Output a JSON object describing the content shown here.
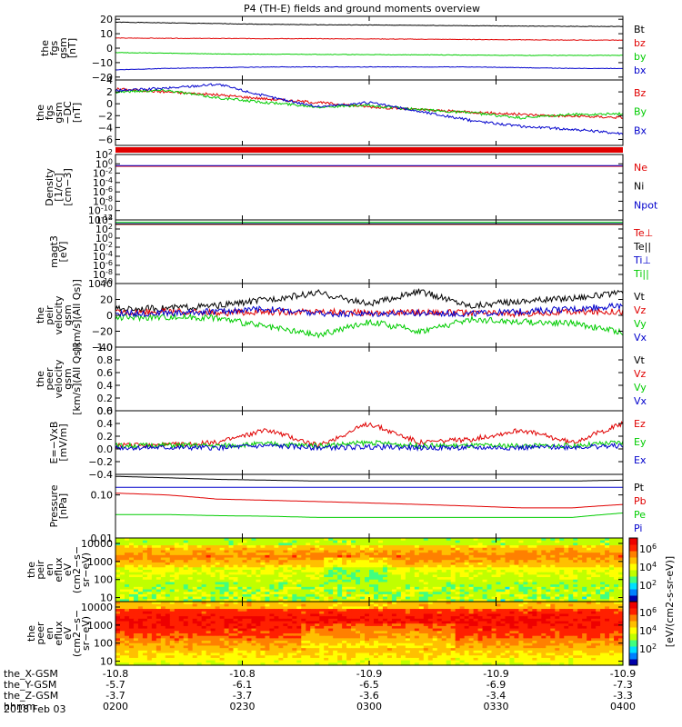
{
  "title": "P4 (TH-E) fields and ground moments overview",
  "footer_date": "2018 Feb 03",
  "colorbar_label": "[eV/(cm2-s-sr-eV)]",
  "colorbar_ticks": [
    "10^6",
    "10^4",
    "10^2"
  ],
  "ephemeris": {
    "labels": [
      "the_X-GSM",
      "the_Y-GSM",
      "the_Z-GSM",
      "hhmm"
    ],
    "rows": [
      [
        "-10.8",
        "-10.8",
        "-10.9",
        "-10.9",
        "-10.9"
      ],
      [
        "-5.7",
        "-6.1",
        "-6.5",
        "-6.9",
        "-7.3"
      ],
      [
        "-3.7",
        "-3.7",
        "-3.6",
        "-3.4",
        "-3.3"
      ],
      [
        "0200",
        "0230",
        "0300",
        "0330",
        "0400"
      ]
    ]
  },
  "chart_data": [
    {
      "id": "fgs",
      "type": "line",
      "ylabel": "the\nfgs\ngsm\n[nT]",
      "ylim": [
        -22,
        22
      ],
      "ticks": [
        {
          "v": 20,
          "t": "20"
        },
        {
          "v": 10,
          "t": "10"
        },
        {
          "v": 0,
          "t": "0"
        },
        {
          "v": -10,
          "t": "−10"
        },
        {
          "v": -20,
          "t": "−20"
        }
      ],
      "series": [
        {
          "name": "Bt",
          "color": "#000000",
          "values": [
            18,
            17.5,
            17,
            16.5,
            16.2,
            16,
            15.8,
            15.5,
            15.3,
            15.1,
            15
          ]
        },
        {
          "name": "bz",
          "color": "#e00000",
          "values": [
            7,
            6.8,
            6.7,
            6.6,
            6.5,
            6.4,
            6.2,
            6,
            5.8,
            5.6,
            5.5
          ]
        },
        {
          "name": "by",
          "color": "#00cc00",
          "values": [
            -3,
            -3.5,
            -4,
            -4.2,
            -4.3,
            -4.5,
            -4.6,
            -4.8,
            -5,
            -5,
            -5
          ]
        },
        {
          "name": "bx",
          "color": "#0000cc",
          "values": [
            -15,
            -14,
            -13.5,
            -13,
            -13,
            -13,
            -13,
            -13,
            -13.5,
            -14,
            -14
          ]
        }
      ]
    },
    {
      "id": "fgs_dtrend",
      "type": "line",
      "ylabel": "the\nfgs\ngsm\n−DC\n[nT]",
      "ylim": [
        -7,
        4
      ],
      "ticks": [
        {
          "v": 4,
          "t": "4"
        },
        {
          "v": 2,
          "t": "2"
        },
        {
          "v": 0,
          "t": "0"
        },
        {
          "v": -2,
          "t": "−2"
        },
        {
          "v": -4,
          "t": "−4"
        },
        {
          "v": -6,
          "t": "−6"
        }
      ],
      "series": [
        {
          "name": "Bz",
          "color": "#e00000",
          "values": [
            2.5,
            2,
            1.5,
            0.8,
            0.2,
            -0.5,
            -1,
            -1.4,
            -1.8,
            -2.1,
            -2.3
          ]
        },
        {
          "name": "By",
          "color": "#00cc00",
          "values": [
            2,
            2.3,
            1,
            0.2,
            -0.5,
            -0.3,
            -1,
            -1.5,
            -2.4,
            -1.8,
            -1.7
          ]
        },
        {
          "name": "Bx",
          "color": "#0000cc",
          "values": [
            2.2,
            2.6,
            3.3,
            1.2,
            -0.5,
            0.2,
            -1.3,
            -2.8,
            -3.8,
            -4.3,
            -5
          ]
        }
      ]
    },
    {
      "id": "density",
      "type": "line",
      "ylabel": "Density\n[1/cc]\n[cm−3]",
      "log": true,
      "ylim": [
        1e-12,
        100
      ],
      "ticks": [
        {
          "v": 100,
          "t": "10^2"
        },
        {
          "v": 1,
          "t": "10^0"
        },
        {
          "v": 0.01,
          "t": "10^-2"
        },
        {
          "v": 0.0001,
          "t": "10^-4"
        },
        {
          "v": 1e-06,
          "t": "10^-6"
        },
        {
          "v": 1e-08,
          "t": "10^-8"
        },
        {
          "v": 1e-10,
          "t": "10^-10"
        },
        {
          "v": 1e-12,
          "t": "10^-12"
        }
      ],
      "series": [
        {
          "name": "Ne",
          "color": "#e00000",
          "values": [
            0.3,
            0.3,
            0.3,
            0.3,
            0.3,
            0.3,
            0.3,
            0.3,
            0.3,
            0.3,
            0.3
          ]
        },
        {
          "name": "Ni",
          "color": "#000000",
          "values": []
        },
        {
          "name": "Npot",
          "color": "#0000cc",
          "values": [
            0.4,
            0.4,
            0.4,
            0.4,
            0.4,
            0.4,
            0.4,
            0.4,
            0.4,
            0.4,
            0.4
          ]
        }
      ]
    },
    {
      "id": "temp",
      "type": "line",
      "ylabel": "magt3\n[eV]",
      "log": true,
      "ylim": [
        1e-10,
        10000
      ],
      "ticks": [
        {
          "v": 10000,
          "t": "10^4"
        },
        {
          "v": 100,
          "t": "10^2"
        },
        {
          "v": 1,
          "t": "10^0"
        },
        {
          "v": 0.01,
          "t": "10^-2"
        },
        {
          "v": 0.0001,
          "t": "10^-4"
        },
        {
          "v": 1e-06,
          "t": "10^-6"
        },
        {
          "v": 1e-08,
          "t": "10^-8"
        },
        {
          "v": 1e-10,
          "t": "10^-10"
        }
      ],
      "series": [
        {
          "name": "Te⊥",
          "color": "#e00000",
          "values": [
            1000,
            1000,
            1000,
            1000,
            1000,
            1000,
            1000,
            1000,
            1000,
            1000,
            1000
          ]
        },
        {
          "name": "Te||",
          "color": "#000000",
          "values": [
            1200,
            1200,
            1200,
            1200,
            1200,
            1200,
            1200,
            1200,
            1200,
            1200,
            1200
          ]
        },
        {
          "name": "Ti⊥",
          "color": "#0000cc",
          "values": [
            2500,
            2500,
            2500,
            2500,
            2500,
            2500,
            2500,
            2500,
            2500,
            2500,
            2500
          ]
        },
        {
          "name": "Ti||",
          "color": "#00cc00",
          "values": [
            3000,
            3000,
            3000,
            3000,
            3000,
            3000,
            3000,
            3000,
            3000,
            3000,
            3000
          ]
        }
      ]
    },
    {
      "id": "peir_vel",
      "type": "line",
      "ylabel": "the\npeir\nvelocity\ngsm\n[km/s](All Qs)]",
      "ylim": [
        -40,
        40
      ],
      "ticks": [
        {
          "v": 40,
          "t": "40"
        },
        {
          "v": 20,
          "t": "20"
        },
        {
          "v": 0,
          "t": "0"
        },
        {
          "v": -20,
          "t": "−20"
        },
        {
          "v": -40,
          "t": "−40"
        }
      ],
      "series": [
        {
          "name": "Vt",
          "color": "#000000",
          "values": [
            8,
            9,
            12,
            20,
            28,
            14,
            30,
            12,
            18,
            22,
            28
          ]
        },
        {
          "name": "Vz",
          "color": "#e00000",
          "values": [
            4,
            5,
            3,
            4,
            5,
            3,
            4,
            3,
            2,
            4,
            5
          ]
        },
        {
          "name": "Vy",
          "color": "#00cc00",
          "values": [
            -3,
            -2,
            -3,
            -15,
            -25,
            -8,
            -20,
            -5,
            -8,
            -10,
            -22
          ]
        },
        {
          "name": "Vx",
          "color": "#0000cc",
          "values": [
            2,
            3,
            5,
            8,
            2,
            2,
            3,
            2,
            5,
            8,
            12
          ]
        }
      ]
    },
    {
      "id": "peer_vel",
      "type": "line",
      "ylabel": "the\npeer\nvelocity\ngsm\n[km/s](All Qs)]",
      "ylim": [
        0,
        1
      ],
      "ticks": [
        {
          "v": 1,
          "t": "1.0"
        },
        {
          "v": 0.8,
          "t": "0.8"
        },
        {
          "v": 0.6,
          "t": "0.6"
        },
        {
          "v": 0.4,
          "t": "0.4"
        },
        {
          "v": 0.2,
          "t": "0.2"
        },
        {
          "v": 0,
          "t": "0.0"
        }
      ],
      "series": [
        {
          "name": "Vt",
          "color": "#000000",
          "values": []
        },
        {
          "name": "Vz",
          "color": "#e00000",
          "values": []
        },
        {
          "name": "Vy",
          "color": "#00cc00",
          "values": []
        },
        {
          "name": "Vx",
          "color": "#0000cc",
          "values": []
        }
      ]
    },
    {
      "id": "efield",
      "type": "line",
      "ylabel": "E=−VxB\n[mV/m]",
      "ylim": [
        -0.4,
        0.6
      ],
      "ticks": [
        {
          "v": 0.6,
          "t": "0.6"
        },
        {
          "v": 0.4,
          "t": "0.4"
        },
        {
          "v": 0.2,
          "t": "0.2"
        },
        {
          "v": 0,
          "t": "0.0"
        },
        {
          "v": -0.2,
          "t": "−0.2"
        },
        {
          "v": -0.4,
          "t": "−0.4"
        }
      ],
      "series": [
        {
          "name": "Ez",
          "color": "#e00000",
          "values": [
            0.05,
            0.06,
            0.1,
            0.3,
            0.05,
            0.4,
            0.1,
            0.15,
            0.3,
            0.1,
            0.4
          ]
        },
        {
          "name": "Ey",
          "color": "#00cc00",
          "values": [
            0.05,
            0.06,
            0.05,
            0.08,
            0.05,
            0.1,
            0.05,
            0.05,
            0.05,
            0.05,
            0.1
          ]
        },
        {
          "name": "Ex",
          "color": "#0000cc",
          "values": [
            0.02,
            0.02,
            0.02,
            0.05,
            0.02,
            0.03,
            0.02,
            0.02,
            0.02,
            0.03,
            0.05
          ]
        }
      ]
    },
    {
      "id": "pressure",
      "type": "line",
      "ylabel": "Pressure\n[nPa]",
      "log": true,
      "ylim": [
        0.01,
        0.3
      ],
      "ticks": [
        {
          "v": 0.1,
          "t": "0.10"
        },
        {
          "v": 0.01,
          "t": "0.01"
        }
      ],
      "series": [
        {
          "name": "Pt",
          "color": "#000000",
          "values": [
            0.27,
            0.25,
            0.23,
            0.22,
            0.21,
            0.21,
            0.21,
            0.21,
            0.21,
            0.21,
            0.22
          ]
        },
        {
          "name": "Pb",
          "color": "#e00000",
          "values": [
            0.11,
            0.1,
            0.08,
            0.075,
            0.07,
            0.065,
            0.06,
            0.055,
            0.05,
            0.05,
            0.06
          ]
        },
        {
          "name": "Pe",
          "color": "#00cc00",
          "values": [
            0.035,
            0.035,
            0.033,
            0.032,
            0.03,
            0.03,
            0.03,
            0.03,
            0.03,
            0.03,
            0.038
          ]
        },
        {
          "name": "Pi",
          "color": "#0000cc",
          "values": [
            0.15,
            0.15,
            0.15,
            0.15,
            0.15,
            0.15,
            0.15,
            0.15,
            0.15,
            0.15,
            0.15
          ]
        }
      ]
    },
    {
      "id": "peir_spec",
      "type": "heatmap",
      "ylabel": "the\npeir\nen\neflux\neV\n(cm2−s−\nsr−eV)",
      "log": true,
      "ylim": [
        6,
        20000
      ],
      "ticks": [
        {
          "v": 10000,
          "t": "10000"
        },
        {
          "v": 1000,
          "t": "1000"
        },
        {
          "v": 100,
          "t": "100"
        },
        {
          "v": 10,
          "t": "10"
        }
      ]
    },
    {
      "id": "peer_spec",
      "type": "heatmap",
      "ylabel": "the\npeer\nen\neflux\neV\n(cm2−s−\nsr−eV)",
      "log": true,
      "ylim": [
        6,
        20000
      ],
      "ticks": [
        {
          "v": 10000,
          "t": "10000"
        },
        {
          "v": 1000,
          "t": "1000"
        },
        {
          "v": 100,
          "t": "100"
        },
        {
          "v": 10,
          "t": "10"
        }
      ]
    }
  ]
}
